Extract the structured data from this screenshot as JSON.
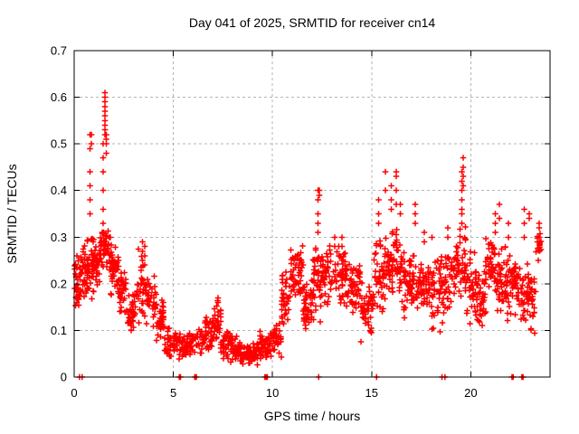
{
  "window": {
    "background": "#ffffff"
  },
  "chart_data": {
    "type": "scatter",
    "title": "Day 041 of 2025, SRMTID for receiver cn14",
    "xlabel": "GPS time / hours",
    "ylabel": "SRMTID / TECUs",
    "xlim": [
      0,
      24
    ],
    "ylim": [
      0,
      0.7
    ],
    "xticks": [
      0,
      5,
      10,
      15,
      20
    ],
    "xtick_labels": [
      "0",
      "5",
      "10",
      "15",
      "20"
    ],
    "yticks": [
      0,
      0.1,
      0.2,
      0.3,
      0.4,
      0.5,
      0.6,
      0.7
    ],
    "ytick_labels": [
      "0",
      "0.1",
      "0.2",
      "0.3",
      "0.4",
      "0.5",
      "0.6",
      "0.7"
    ],
    "grid": true,
    "grid_style": "dashed",
    "grid_color": "#b5b5b5",
    "marker": "plus",
    "marker_color": "#ff0000",
    "legend": "none",
    "seed": 20250041,
    "bands": [
      [
        0.0,
        0.3,
        0.13,
        0.28,
        30
      ],
      [
        0.3,
        0.65,
        0.14,
        0.3,
        35
      ],
      [
        0.65,
        0.95,
        0.16,
        0.3,
        35
      ],
      [
        0.95,
        1.3,
        0.18,
        0.31,
        40
      ],
      [
        1.3,
        1.85,
        0.22,
        0.33,
        50
      ],
      [
        1.85,
        2.25,
        0.17,
        0.3,
        40
      ],
      [
        2.25,
        2.65,
        0.12,
        0.24,
        35
      ],
      [
        2.65,
        3.1,
        0.08,
        0.19,
        35
      ],
      [
        3.1,
        3.65,
        0.11,
        0.28,
        40
      ],
      [
        3.65,
        4.15,
        0.1,
        0.24,
        35
      ],
      [
        4.15,
        4.55,
        0.07,
        0.17,
        30
      ],
      [
        4.55,
        5.2,
        0.04,
        0.11,
        40
      ],
      [
        5.2,
        5.8,
        0.03,
        0.1,
        40
      ],
      [
        5.8,
        6.6,
        0.04,
        0.12,
        50
      ],
      [
        6.6,
        7.0,
        0.05,
        0.13,
        30
      ],
      [
        7.0,
        7.4,
        0.07,
        0.17,
        30
      ],
      [
        7.4,
        8.2,
        0.03,
        0.1,
        55
      ],
      [
        8.2,
        9.35,
        0.02,
        0.08,
        80
      ],
      [
        9.35,
        9.95,
        0.03,
        0.1,
        45
      ],
      [
        9.95,
        10.45,
        0.04,
        0.12,
        35
      ],
      [
        10.45,
        10.85,
        0.09,
        0.24,
        35
      ],
      [
        10.85,
        11.55,
        0.16,
        0.29,
        55
      ],
      [
        11.55,
        12.0,
        0.08,
        0.22,
        40
      ],
      [
        12.0,
        12.5,
        0.1,
        0.3,
        45
      ],
      [
        12.5,
        13.1,
        0.15,
        0.29,
        45
      ],
      [
        13.1,
        13.7,
        0.15,
        0.29,
        45
      ],
      [
        13.7,
        14.45,
        0.13,
        0.26,
        55
      ],
      [
        14.45,
        15.1,
        0.07,
        0.22,
        45
      ],
      [
        15.1,
        15.7,
        0.12,
        0.33,
        45
      ],
      [
        15.7,
        16.5,
        0.16,
        0.34,
        65
      ],
      [
        16.5,
        17.0,
        0.11,
        0.29,
        40
      ],
      [
        17.0,
        17.45,
        0.12,
        0.27,
        35
      ],
      [
        17.45,
        18.0,
        0.13,
        0.27,
        40
      ],
      [
        18.0,
        18.5,
        0.08,
        0.28,
        40
      ],
      [
        18.5,
        19.0,
        0.1,
        0.28,
        40
      ],
      [
        19.0,
        19.45,
        0.15,
        0.29,
        35
      ],
      [
        19.45,
        19.75,
        0.15,
        0.33,
        25
      ],
      [
        19.75,
        20.3,
        0.1,
        0.29,
        40
      ],
      [
        20.3,
        20.75,
        0.08,
        0.24,
        35
      ],
      [
        20.75,
        21.3,
        0.17,
        0.31,
        40
      ],
      [
        21.3,
        21.8,
        0.12,
        0.29,
        40
      ],
      [
        21.8,
        22.3,
        0.1,
        0.28,
        40
      ],
      [
        22.3,
        22.85,
        0.08,
        0.27,
        35
      ],
      [
        22.85,
        23.3,
        0.06,
        0.26,
        35
      ],
      [
        23.3,
        23.55,
        0.24,
        0.33,
        15
      ]
    ],
    "spike_columns": [
      {
        "x": 0.8,
        "ys": [
          0.35,
          0.38,
          0.41,
          0.44,
          0.49,
          0.52
        ]
      },
      {
        "x": 0.87,
        "ys": [
          0.5,
          0.52
        ]
      },
      {
        "x": 1.45,
        "ys": [
          0.33,
          0.36,
          0.4,
          0.44,
          0.47,
          0.5
        ]
      },
      {
        "x": 1.55,
        "ys": [
          0.52,
          0.53,
          0.54,
          0.55,
          0.56,
          0.57,
          0.58,
          0.59,
          0.6,
          0.61
        ]
      },
      {
        "x": 1.62,
        "ys": [
          0.48,
          0.5,
          0.51,
          0.52
        ]
      },
      {
        "x": 3.45,
        "ys": [
          0.25,
          0.27,
          0.29
        ]
      },
      {
        "x": 3.55,
        "ys": [
          0.24,
          0.26,
          0.28
        ]
      },
      {
        "x": 4.5,
        "ys": [
          0.13,
          0.15,
          0.16
        ]
      },
      {
        "x": 7.25,
        "ys": [
          0.12,
          0.14,
          0.16,
          0.17
        ]
      },
      {
        "x": 12.3,
        "ys": [
          0.31,
          0.33,
          0.35,
          0.38,
          0.4
        ]
      },
      {
        "x": 12.37,
        "ys": [
          0.39,
          0.4
        ]
      },
      {
        "x": 13.15,
        "ys": [
          0.28,
          0.3
        ]
      },
      {
        "x": 13.5,
        "ys": [
          0.28,
          0.3
        ]
      },
      {
        "x": 15.35,
        "ys": [
          0.33,
          0.35,
          0.38
        ]
      },
      {
        "x": 15.7,
        "ys": [
          0.4,
          0.44
        ]
      },
      {
        "x": 16.0,
        "ys": [
          0.36,
          0.38,
          0.41
        ]
      },
      {
        "x": 16.25,
        "ys": [
          0.37,
          0.4,
          0.43,
          0.44
        ]
      },
      {
        "x": 16.45,
        "ys": [
          0.35,
          0.37
        ]
      },
      {
        "x": 17.2,
        "ys": [
          0.33,
          0.35,
          0.37
        ]
      },
      {
        "x": 17.65,
        "ys": [
          0.29,
          0.31
        ]
      },
      {
        "x": 18.05,
        "ys": [
          0.3
        ]
      },
      {
        "x": 18.85,
        "ys": [
          0.3,
          0.32
        ]
      },
      {
        "x": 19.55,
        "ys": [
          0.33,
          0.35,
          0.36,
          0.38,
          0.4,
          0.42,
          0.44
        ]
      },
      {
        "x": 19.62,
        "ys": [
          0.41,
          0.43,
          0.45,
          0.47
        ]
      },
      {
        "x": 21.25,
        "ys": [
          0.31,
          0.33,
          0.35
        ]
      },
      {
        "x": 21.45,
        "ys": [
          0.34,
          0.37
        ]
      },
      {
        "x": 21.9,
        "ys": [
          0.3,
          0.33
        ]
      },
      {
        "x": 22.7,
        "ys": [
          0.3,
          0.33,
          0.36
        ]
      },
      {
        "x": 22.95,
        "ys": [
          0.34,
          0.35
        ]
      },
      {
        "x": 23.45,
        "ys": [
          0.3,
          0.32,
          0.33
        ]
      }
    ],
    "zero_points": [
      0.27,
      0.4,
      5.3,
      5.32,
      5.34,
      5.36,
      6.08,
      6.1,
      6.12,
      6.14,
      6.16,
      9.62,
      9.64,
      9.66,
      9.68,
      9.7,
      9.72,
      9.74,
      12.33,
      15.25,
      18.55,
      18.7,
      22.08,
      22.1,
      22.12,
      22.14,
      22.58,
      22.6,
      22.62,
      22.64
    ]
  }
}
